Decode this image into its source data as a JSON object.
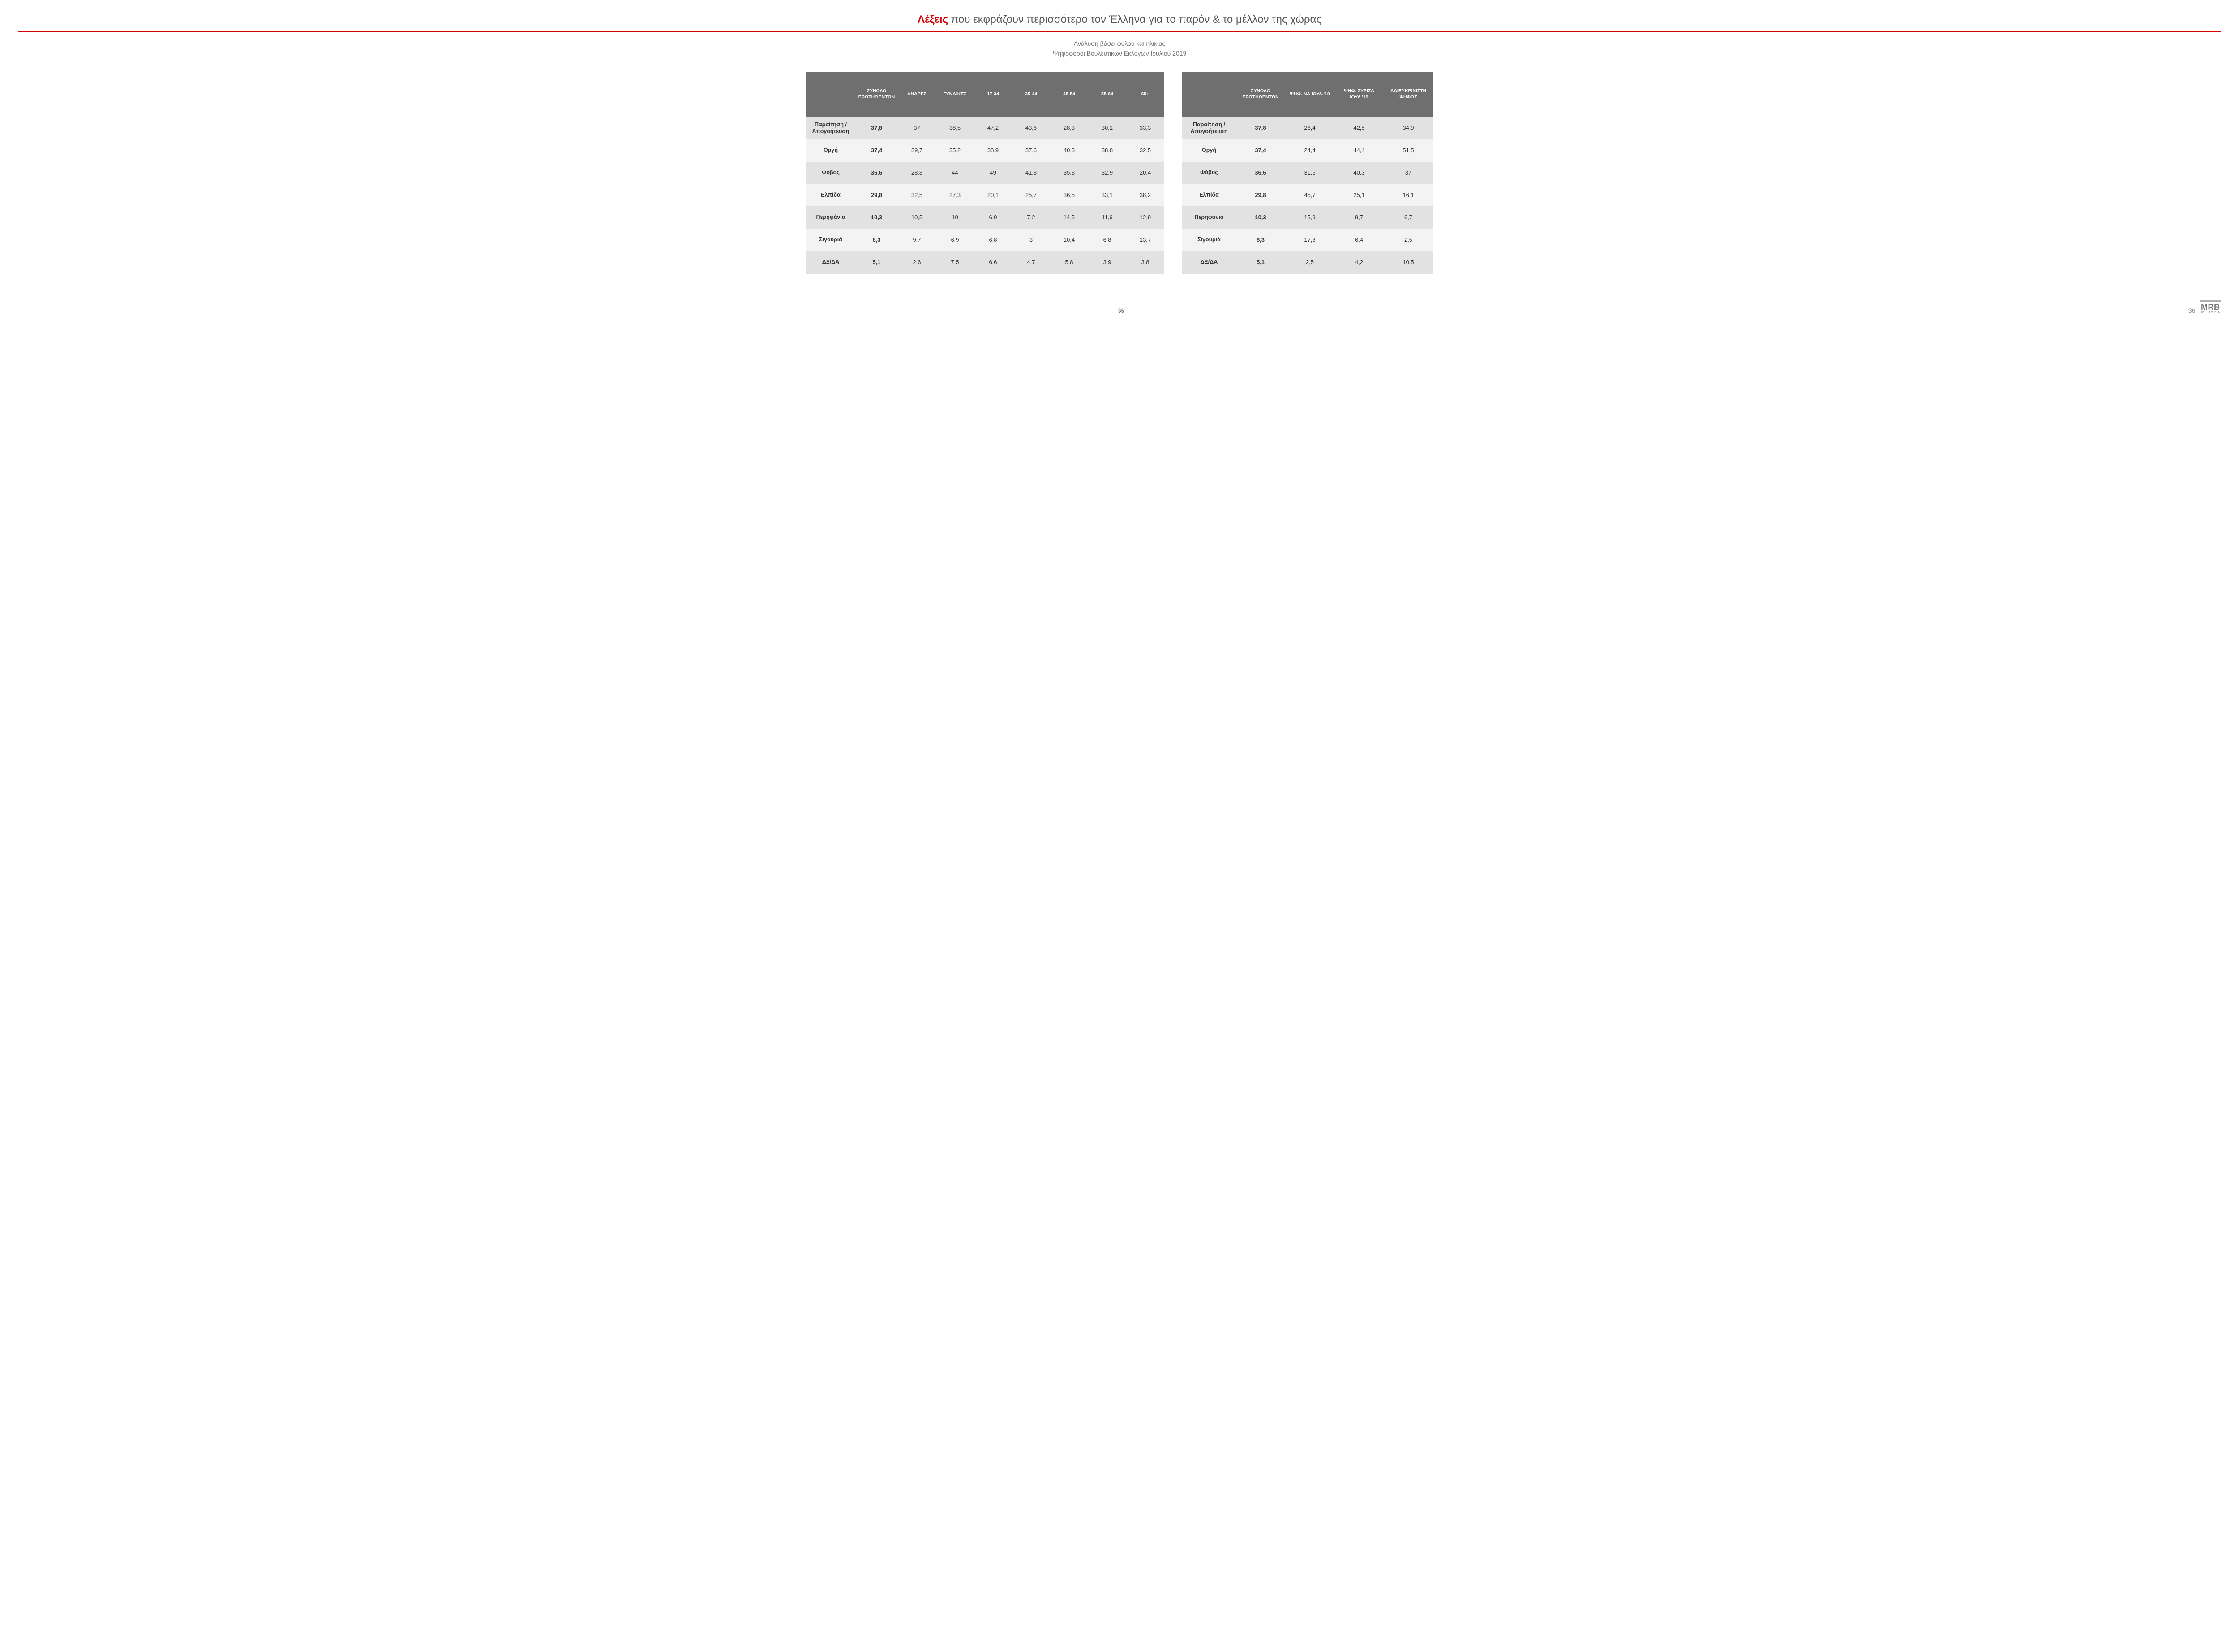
{
  "title_highlight": "Λέξεις",
  "title_rest": " που εκφράζουν περισσότερο τον Έλληνα για το παρόν & το μέλλον της χώρας",
  "subtitle1": "Ανάλυση βάσει φύλου και ηλικίας",
  "subtitle2": "Ψηφοφόροι Βουλευτικών Εκλογών Ιουλίου 2019",
  "percent_symbol": "%",
  "page_number": "36",
  "logo_big": "MRB",
  "logo_small": "HELLAS S.A.",
  "colors": {
    "accent_red": "#d90000",
    "header_bg": "#6f6f6f",
    "row_alt_dark": "#e2e2e2",
    "row_alt_light": "#f3f3f3",
    "text_muted": "#777"
  },
  "left": {
    "headers": [
      "",
      "ΣΥΝΟΛΟ ΕΡΩΤΗΘΕΝΤΩΝ",
      "ΑΝΔΡΕΣ",
      "ΓΥΝΑΙΚΕΣ",
      "17-34",
      "35-44",
      "45-54",
      "55-64",
      "65+"
    ],
    "rows": [
      {
        "label": "Παραίτηση / Απογοήτευση",
        "cells": [
          "37,8",
          "37",
          "38,5",
          "47,2",
          "43,6",
          "28,3",
          "30,1",
          "33,3"
        ]
      },
      {
        "label": "Οργή",
        "cells": [
          "37,4",
          "39,7",
          "35,2",
          "38,9",
          "37,6",
          "40,3",
          "38,8",
          "32,5"
        ]
      },
      {
        "label": "Φόβος",
        "cells": [
          "36,6",
          "28,8",
          "44",
          "49",
          "41,8",
          "35,8",
          "32,9",
          "20,4"
        ]
      },
      {
        "label": "Ελπίδα",
        "cells": [
          "29,8",
          "32,5",
          "27,3",
          "20,1",
          "25,7",
          "36,5",
          "33,1",
          "38,2"
        ]
      },
      {
        "label": "Περηφάνια",
        "cells": [
          "10,3",
          "10,5",
          "10",
          "6,9",
          "7,2",
          "14,5",
          "11,6",
          "12,9"
        ]
      },
      {
        "label": "Σιγουριά",
        "cells": [
          "8,3",
          "9,7",
          "6,9",
          "6,8",
          "3",
          "10,4",
          "6,8",
          "13,7"
        ]
      },
      {
        "label": "ΔΞ/ΔΑ",
        "cells": [
          "5,1",
          "2,6",
          "7,5",
          "6,6",
          "4,7",
          "5,8",
          "3,9",
          "3,8"
        ]
      }
    ]
  },
  "right": {
    "headers": [
      "",
      "ΣΥΝΟΛΟ ΕΡΩΤΗΘΕΝΤΩΝ",
      "ΨΗΦ. ΝΔ ΙΟΥΛ.'19",
      "ΨΗΦ. ΣΥΡΙΖΑ ΙΟΥΛ.'19",
      "ΑΔΙΕΥΚΡΙΝΙΣΤΗ ΨΗΦΟΣ"
    ],
    "rows": [
      {
        "label": "Παραίτηση / Απογοήτευση",
        "cells": [
          "37,8",
          "26,4",
          "42,5",
          "34,9"
        ]
      },
      {
        "label": "Οργή",
        "cells": [
          "37,4",
          "24,4",
          "44,4",
          "51,5"
        ]
      },
      {
        "label": "Φόβος",
        "cells": [
          "36,6",
          "31,6",
          "40,3",
          "37"
        ]
      },
      {
        "label": "Ελπίδα",
        "cells": [
          "29,8",
          "45,7",
          "25,1",
          "16,1"
        ]
      },
      {
        "label": "Περηφάνια",
        "cells": [
          "10,3",
          "15,9",
          "9,7",
          "6,7"
        ]
      },
      {
        "label": "Σιγουριά",
        "cells": [
          "8,3",
          "17,8",
          "6,4",
          "2,5"
        ]
      },
      {
        "label": "ΔΞ/ΔΑ",
        "cells": [
          "5,1",
          "2,5",
          "4,2",
          "10,5"
        ]
      }
    ]
  }
}
